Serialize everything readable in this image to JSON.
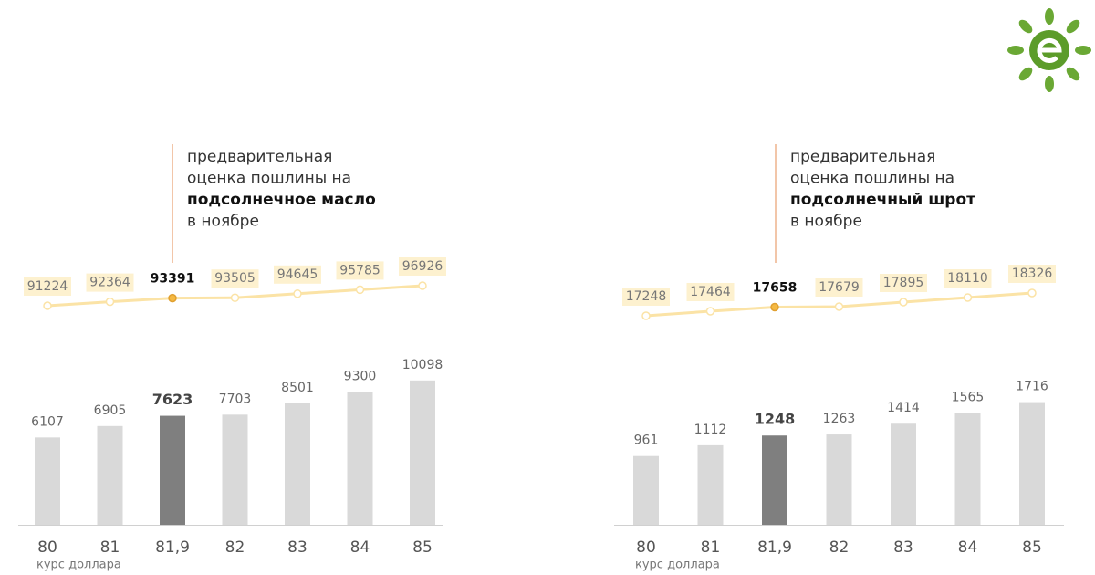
{
  "chart_data": [
    {
      "type": "bar",
      "categories": [
        "80",
        "81",
        "81,9",
        "82",
        "83",
        "84",
        "85"
      ],
      "values": [
        6107,
        6905,
        7623,
        7703,
        8501,
        9300,
        10098
      ],
      "ylim": [
        0,
        12000
      ],
      "color": "#d9d9d9",
      "highlight": 2,
      "highlight_color": "#7f7f7f",
      "line_values": [
        91224,
        92364,
        93391,
        93505,
        94645,
        95785,
        96926
      ],
      "line_color": "#fbe3a6",
      "line_highlight_color": "#f5b942",
      "x_label": "курс доллара",
      "annotation_lines": [
        "предварительная",
        "оценка пошлины на",
        "подсолнечное масло",
        "в ноябре"
      ],
      "annotation_bold_line": 2
    },
    {
      "type": "bar",
      "categories": [
        "80",
        "81",
        "81,9",
        "82",
        "83",
        "84",
        "85"
      ],
      "values": [
        961,
        1112,
        1248,
        1263,
        1414,
        1565,
        1716
      ],
      "ylim": [
        0,
        2400
      ],
      "color": "#d9d9d9",
      "highlight": 2,
      "highlight_color": "#7f7f7f",
      "line_values": [
        17248,
        17464,
        17658,
        17679,
        17895,
        18110,
        18326
      ],
      "line_color": "#fbe3a6",
      "line_highlight_color": "#f5b942",
      "x_label": "курс доллара",
      "annotation_lines": [
        "предварительная",
        "оценка пошлины на",
        "подсолнечный шрот",
        "в ноябре"
      ],
      "annotation_bold_line": 2
    }
  ]
}
